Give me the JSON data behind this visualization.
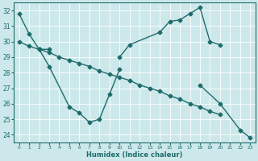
{
  "xlabel": "Humidex (Indice chaleur)",
  "bg_color": "#cce8ea",
  "line_color": "#1e6b6b",
  "grid_color": "#ffffff",
  "ylim": [
    23.5,
    32.5
  ],
  "xlim": [
    -0.5,
    23.5
  ],
  "yticks": [
    24,
    25,
    26,
    27,
    28,
    29,
    30,
    31,
    32
  ],
  "xticks": [
    0,
    1,
    2,
    3,
    4,
    5,
    6,
    7,
    8,
    9,
    10,
    11,
    12,
    13,
    14,
    15,
    16,
    17,
    18,
    19,
    20,
    21,
    22,
    23
  ],
  "series": [
    {
      "segments": [
        {
          "x": [
            0,
            1,
            2,
            3
          ],
          "y": [
            31.8,
            30.5,
            29.5,
            29.5
          ]
        },
        {
          "x": [
            10,
            11,
            14,
            15,
            16,
            17,
            18,
            19,
            20
          ],
          "y": [
            29.0,
            29.8,
            30.6,
            31.3,
            31.4,
            31.8,
            32.2,
            30.0,
            29.8
          ]
        }
      ]
    },
    {
      "segments": [
        {
          "x": [
            0,
            1,
            2,
            3,
            4,
            5,
            6,
            7,
            8,
            9,
            10,
            11,
            12,
            13,
            14,
            15,
            16,
            17,
            18,
            19,
            20
          ],
          "y": [
            30.0,
            29.7,
            29.5,
            29.3,
            29.0,
            28.8,
            28.6,
            28.4,
            28.1,
            27.9,
            27.7,
            27.5,
            27.2,
            27.0,
            26.8,
            26.5,
            26.3,
            26.0,
            25.8,
            25.5,
            25.3
          ]
        }
      ]
    },
    {
      "segments": [
        {
          "x": [
            2,
            3,
            5,
            6,
            7,
            8,
            9,
            10
          ],
          "y": [
            29.5,
            28.4,
            25.8,
            25.4,
            24.8,
            25.0,
            26.6,
            28.2
          ]
        },
        {
          "x": [
            18,
            20,
            22,
            23
          ],
          "y": [
            27.2,
            26.0,
            24.3,
            23.8
          ]
        }
      ]
    }
  ],
  "marker_size": 2.5,
  "line_width": 1.0
}
